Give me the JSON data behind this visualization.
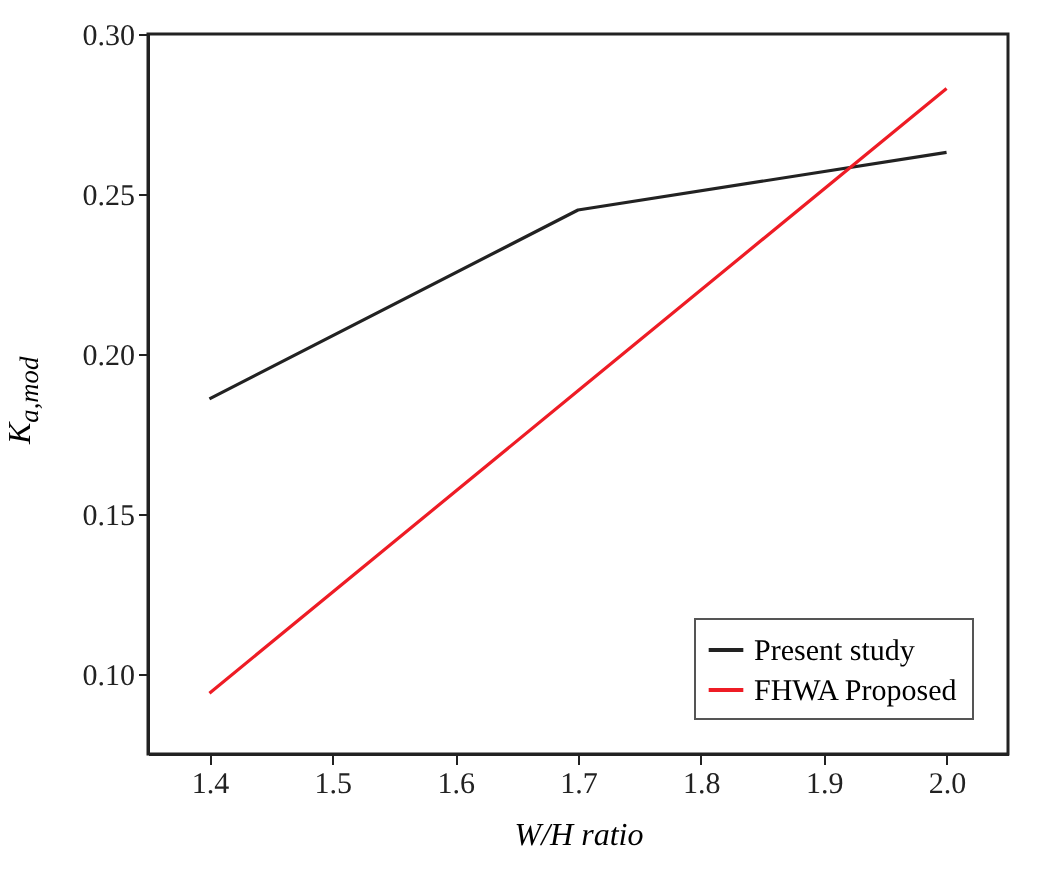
{
  "chart_data": {
    "type": "line",
    "xlabel": "W/H ratio",
    "ylabel": "K$_{a,mod}$",
    "x": [
      1.4,
      1.7,
      2.0
    ],
    "series": [
      {
        "name": "Present study",
        "color": "#222222",
        "values": [
          0.186,
          0.245,
          0.263
        ]
      },
      {
        "name": "FHWA Proposed",
        "color": "#ee1c25",
        "values": [
          0.094,
          0.1885,
          0.283
        ]
      }
    ],
    "xlim": [
      1.35,
      2.05
    ],
    "xticks": [
      1.4,
      1.5,
      1.6,
      1.7,
      1.8,
      1.9,
      {
        "value": 2,
        "label": "2.0"
      }
    ],
    "ylim": [
      0.075,
      0.3
    ],
    "yticks": [
      {
        "value": 0.1,
        "label": "0.10"
      },
      0.15,
      {
        "value": 0.2,
        "label": "0.20"
      },
      0.25,
      {
        "value": 0.3,
        "label": "0.30"
      }
    ],
    "grid": false,
    "legend": "bottom right",
    "marker": "none",
    "line_style": "solid"
  }
}
